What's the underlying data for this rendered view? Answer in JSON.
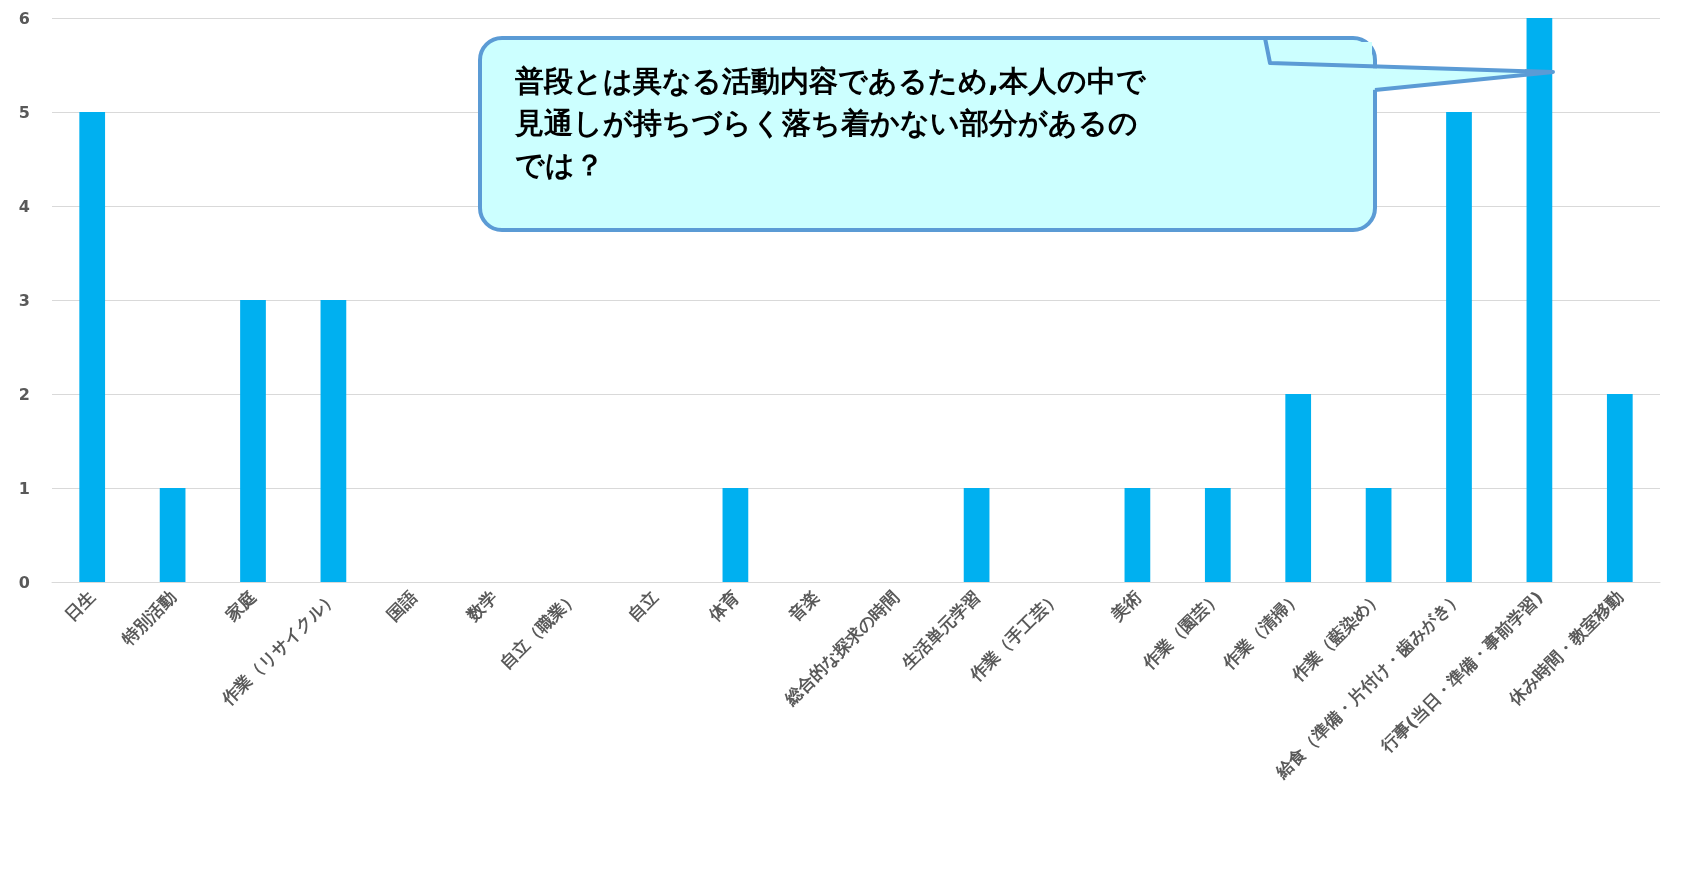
{
  "chart_data": {
    "type": "bar",
    "categories": [
      "日生",
      "特別活動",
      "家庭",
      "作業（リサイクル）",
      "国語",
      "数学",
      "自立（職業）",
      "自立",
      "体育",
      "音楽",
      "総合的な探求の時間",
      "生活単元学習",
      "作業（手工芸）",
      "美術",
      "作業（園芸）",
      "作業（清掃）",
      "作業（藍染め）",
      "給食（準備・片付け・歯みがき）",
      "行事(当日・準備・事前学習)",
      "休み時間・教室移動"
    ],
    "values": [
      5,
      1,
      3,
      3,
      0,
      0,
      0,
      0,
      1,
      0,
      0,
      1,
      0,
      1,
      1,
      2,
      1,
      5,
      6,
      2
    ],
    "color": "#00b0f0",
    "ylim": [
      0,
      6
    ],
    "yticks": [
      0,
      1,
      2,
      3,
      4,
      5,
      6
    ],
    "grid": "y",
    "annotations": [
      "普段とは異なる活動内容であるため,本人の中で見通しが持ちづらく落ち着かない部分があるのでは？"
    ]
  }
}
